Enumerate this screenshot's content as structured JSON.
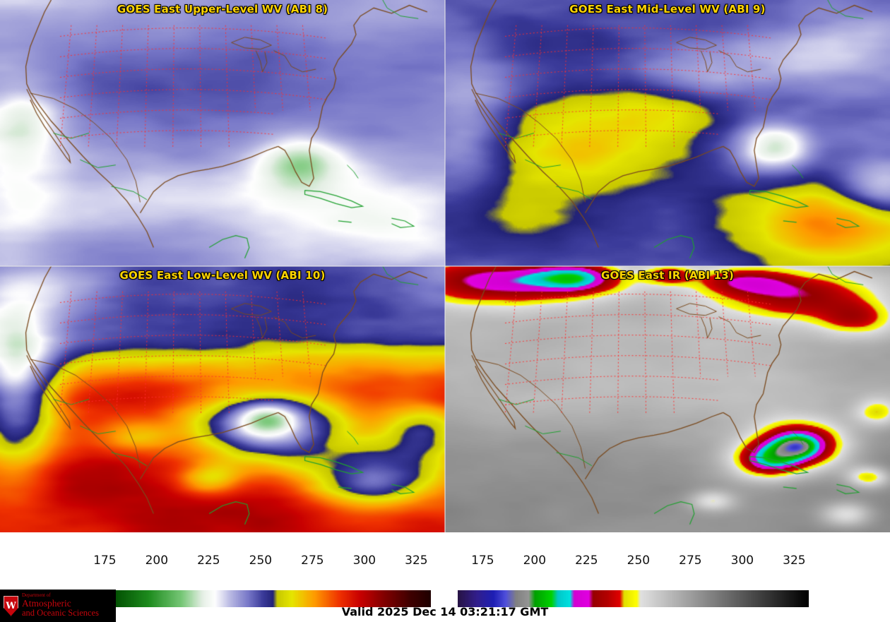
{
  "page": {
    "background": "#ffffff",
    "title_color": "#ffd400"
  },
  "panels": [
    {
      "id": "abi8",
      "title": "GOES East Upper-Level WV (ABI 8)",
      "palette": "wv"
    },
    {
      "id": "abi9",
      "title": "GOES East Mid-Level WV (ABI 9)",
      "palette": "wv"
    },
    {
      "id": "abi10",
      "title": "GOES East Low-Level WV (ABI 10)",
      "palette": "wv"
    },
    {
      "id": "abi13",
      "title": "GOES East IR (ABI 13)",
      "palette": "ir"
    }
  ],
  "map_colors": {
    "coast": "#7a4a1e",
    "borders_green": "#1fa02f",
    "state_lines_red": "#ff2d2d"
  },
  "colorbars": [
    {
      "id": "wv",
      "domain": [
        163,
        332
      ],
      "ticks": [
        "175",
        "200",
        "225",
        "250",
        "275",
        "300",
        "325"
      ],
      "stops": [
        [
          163,
          "#000a00"
        ],
        [
          178,
          "#004b00"
        ],
        [
          196,
          "#1e8c1e"
        ],
        [
          212,
          "#78c878"
        ],
        [
          222,
          "#e6f0e6"
        ],
        [
          228,
          "#ffffff"
        ],
        [
          236,
          "#b4b4e1"
        ],
        [
          244,
          "#7878c8"
        ],
        [
          251,
          "#3c3c9b"
        ],
        [
          256,
          "#232378"
        ],
        [
          258,
          "#c8c800"
        ],
        [
          265,
          "#e6e600"
        ],
        [
          276,
          "#ff9b00"
        ],
        [
          288,
          "#f03200"
        ],
        [
          298,
          "#c80000"
        ],
        [
          310,
          "#800000"
        ],
        [
          322,
          "#400000"
        ],
        [
          332,
          "#200000"
        ]
      ]
    },
    {
      "id": "ir",
      "domain": [
        163,
        332
      ],
      "ticks": [
        "175",
        "200",
        "225",
        "250",
        "275",
        "300",
        "325"
      ],
      "stops": [
        [
          163,
          "#281446"
        ],
        [
          172,
          "#321e8c"
        ],
        [
          180,
          "#1e1eb4"
        ],
        [
          186,
          "#5050dc"
        ],
        [
          191,
          "#828282"
        ],
        [
          197,
          "#969696"
        ],
        [
          200,
          "#00a000"
        ],
        [
          208,
          "#00d200"
        ],
        [
          211,
          "#00c8c8"
        ],
        [
          217,
          "#00e1e1"
        ],
        [
          219,
          "#d200d2"
        ],
        [
          226,
          "#e100e1"
        ],
        [
          228,
          "#960000"
        ],
        [
          235,
          "#b40000"
        ],
        [
          241,
          "#e10000"
        ],
        [
          243,
          "#e1e100"
        ],
        [
          249,
          "#ffff00"
        ],
        [
          251,
          "#e1e1e1"
        ],
        [
          332,
          "#000000"
        ]
      ]
    }
  ],
  "footer": {
    "valid_label": "Valid 2025 Dec 14 03:21:17 GMT"
  },
  "logo": {
    "bg": "#000000",
    "accent": "#c5050c",
    "crest_letter": "W",
    "dept": "Department of",
    "line1": "Atmospheric",
    "line2": "and Oceanic Sciences"
  }
}
